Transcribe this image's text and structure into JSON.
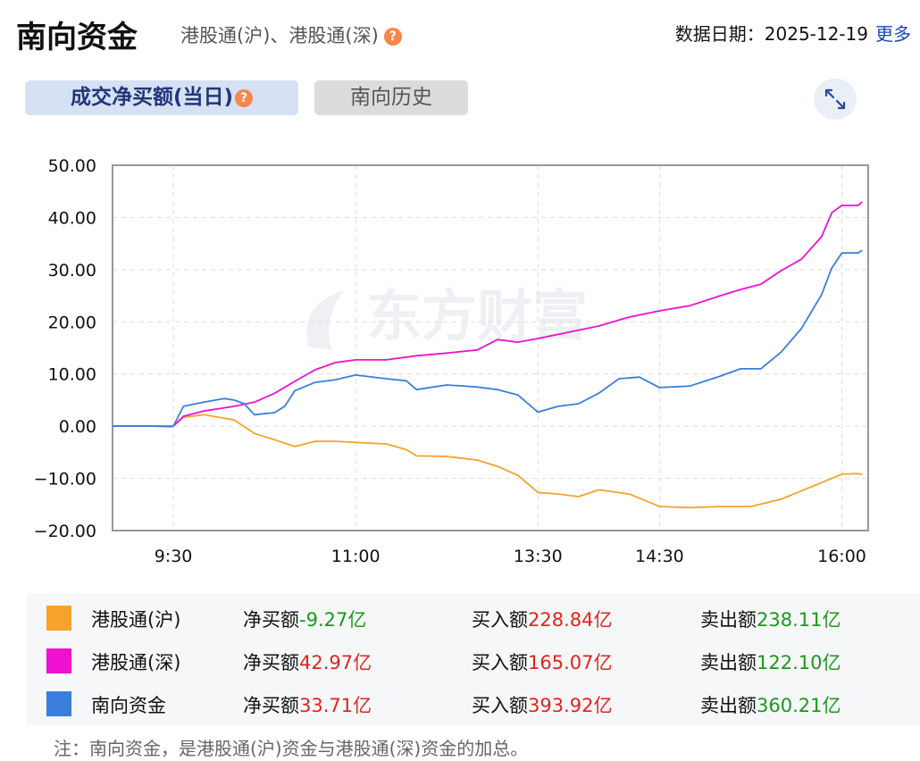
{
  "header": {
    "title": "南向资金",
    "subtitle": "港股通(沪)、港股通(深)",
    "help_glyph": "?",
    "date_label": "数据日期：2025-12-19",
    "more": "更多"
  },
  "tabs": [
    {
      "label": "成交净买额(当日)",
      "active": true
    },
    {
      "label": "南向历史",
      "active": false
    }
  ],
  "icons": {
    "help": "question-circle-icon",
    "expand": "expand-arrows-icon"
  },
  "watermark": "东方财富",
  "colors": {
    "sh": "#f5a32a",
    "sz": "#f010d0",
    "total": "#3a7fdc",
    "red": "#e0261b",
    "green": "#1a9a1a"
  },
  "chart_data": {
    "type": "line",
    "ylim": [
      -20,
      50
    ],
    "yticks": [
      "50.00",
      "40.00",
      "30.00",
      "20.00",
      "10.00",
      "0.00",
      "−10.00",
      "−20.00"
    ],
    "yticks_values": [
      50,
      40,
      30,
      20,
      10,
      0,
      -10,
      -20
    ],
    "xrange": [
      "09:00",
      "16:10"
    ],
    "xbreak": [
      "12:00",
      "13:00"
    ],
    "xticks": [
      "9:30",
      "11:00",
      "13:30",
      "14:30",
      "16:00"
    ],
    "grid": true,
    "series": [
      {
        "name": "港股通(沪)",
        "color": "#f5a32a",
        "points": [
          [
            "09:00",
            0
          ],
          [
            "09:29",
            0
          ],
          [
            "09:30",
            0
          ],
          [
            "09:35",
            1.7
          ],
          [
            "09:45",
            2.2
          ],
          [
            "10:00",
            1.2
          ],
          [
            "10:10",
            -1.4
          ],
          [
            "10:20",
            -2.6
          ],
          [
            "10:30",
            -3.9
          ],
          [
            "10:40",
            -2.9
          ],
          [
            "10:50",
            -2.9
          ],
          [
            "11:00",
            -3.1
          ],
          [
            "11:15",
            -3.4
          ],
          [
            "11:25",
            -4.5
          ],
          [
            "11:30",
            -5.7
          ],
          [
            "11:45",
            -5.8
          ],
          [
            "12:00",
            -6.5
          ],
          [
            "13:10",
            -7.7
          ],
          [
            "13:20",
            -9.4
          ],
          [
            "13:30",
            -12.7
          ],
          [
            "13:40",
            -13
          ],
          [
            "13:50",
            -13.5
          ],
          [
            "14:00",
            -12.2
          ],
          [
            "14:15",
            -13
          ],
          [
            "14:30",
            -15.4
          ],
          [
            "14:45",
            -15.6
          ],
          [
            "15:00",
            -15.4
          ],
          [
            "15:15",
            -15.4
          ],
          [
            "15:30",
            -14
          ],
          [
            "15:45",
            -11.6
          ],
          [
            "16:00",
            -9.2
          ],
          [
            "16:08",
            -9.1
          ],
          [
            "16:10",
            -9.27
          ]
        ]
      },
      {
        "name": "港股通(深)",
        "color": "#f010d0",
        "points": [
          [
            "09:00",
            0
          ],
          [
            "09:29",
            0
          ],
          [
            "09:30",
            0
          ],
          [
            "09:35",
            1.9
          ],
          [
            "09:45",
            2.9
          ],
          [
            "10:00",
            3.8
          ],
          [
            "10:10",
            4.6
          ],
          [
            "10:20",
            6.3
          ],
          [
            "10:30",
            8.6
          ],
          [
            "10:40",
            10.8
          ],
          [
            "10:50",
            12.2
          ],
          [
            "11:00",
            12.7
          ],
          [
            "11:15",
            12.7
          ],
          [
            "11:30",
            13.5
          ],
          [
            "11:45",
            14
          ],
          [
            "12:00",
            14.6
          ],
          [
            "13:10",
            16.6
          ],
          [
            "13:20",
            16.1
          ],
          [
            "13:30",
            16.8
          ],
          [
            "13:45",
            18
          ],
          [
            "14:00",
            19.2
          ],
          [
            "14:15",
            20.9
          ],
          [
            "14:30",
            22.1
          ],
          [
            "14:45",
            23.1
          ],
          [
            "15:00",
            25
          ],
          [
            "15:10",
            26.2
          ],
          [
            "15:20",
            27.2
          ],
          [
            "15:30",
            29.8
          ],
          [
            "15:40",
            32
          ],
          [
            "15:50",
            36.3
          ],
          [
            "15:55",
            40.9
          ],
          [
            "16:00",
            42.3
          ],
          [
            "16:08",
            42.3
          ],
          [
            "16:10",
            42.97
          ]
        ]
      },
      {
        "name": "南向资金",
        "color": "#3a7fdc",
        "points": [
          [
            "09:00",
            0
          ],
          [
            "09:20",
            0
          ],
          [
            "09:29",
            -0.1
          ],
          [
            "09:30",
            0
          ],
          [
            "09:35",
            3.8
          ],
          [
            "09:45",
            4.6
          ],
          [
            "09:55",
            5.3
          ],
          [
            "10:00",
            5
          ],
          [
            "10:05",
            4.3
          ],
          [
            "10:10",
            2.2
          ],
          [
            "10:20",
            2.6
          ],
          [
            "10:25",
            3.8
          ],
          [
            "10:30",
            6.8
          ],
          [
            "10:40",
            8.4
          ],
          [
            "10:50",
            8.9
          ],
          [
            "11:00",
            9.8
          ],
          [
            "11:15",
            9.1
          ],
          [
            "11:25",
            8.7
          ],
          [
            "11:30",
            7
          ],
          [
            "11:45",
            7.9
          ],
          [
            "12:00",
            7.5
          ],
          [
            "13:10",
            7
          ],
          [
            "13:20",
            6
          ],
          [
            "13:30",
            2.7
          ],
          [
            "13:40",
            3.8
          ],
          [
            "13:50",
            4.3
          ],
          [
            "14:00",
            6.3
          ],
          [
            "14:10",
            9.1
          ],
          [
            "14:20",
            9.4
          ],
          [
            "14:30",
            7.4
          ],
          [
            "14:45",
            7.7
          ],
          [
            "15:00",
            9.6
          ],
          [
            "15:10",
            11
          ],
          [
            "15:20",
            11
          ],
          [
            "15:30",
            14.2
          ],
          [
            "15:40",
            18.7
          ],
          [
            "15:50",
            25.2
          ],
          [
            "15:55",
            30.3
          ],
          [
            "16:00",
            33.2
          ],
          [
            "16:08",
            33.2
          ],
          [
            "16:10",
            33.71
          ]
        ]
      }
    ]
  },
  "legend": [
    {
      "name": "港股通(沪)",
      "net_label": "净买额",
      "net": "-9.27亿",
      "buy_label": "买入额",
      "buy": "228.84亿",
      "sell_label": "卖出额",
      "sell": "238.11亿",
      "net_color": "green"
    },
    {
      "name": "港股通(深)",
      "net_label": "净买额",
      "net": "42.97亿",
      "buy_label": "买入额",
      "buy": "165.07亿",
      "sell_label": "卖出额",
      "sell": "122.10亿",
      "net_color": "red"
    },
    {
      "name": "南向资金",
      "net_label": "净买额",
      "net": "33.71亿",
      "buy_label": "买入额",
      "buy": "393.92亿",
      "sell_label": "卖出额",
      "sell": "360.21亿",
      "net_color": "red"
    }
  ],
  "note": "注：南向资金，是港股通(沪)资金与港股通(深)资金的加总。"
}
